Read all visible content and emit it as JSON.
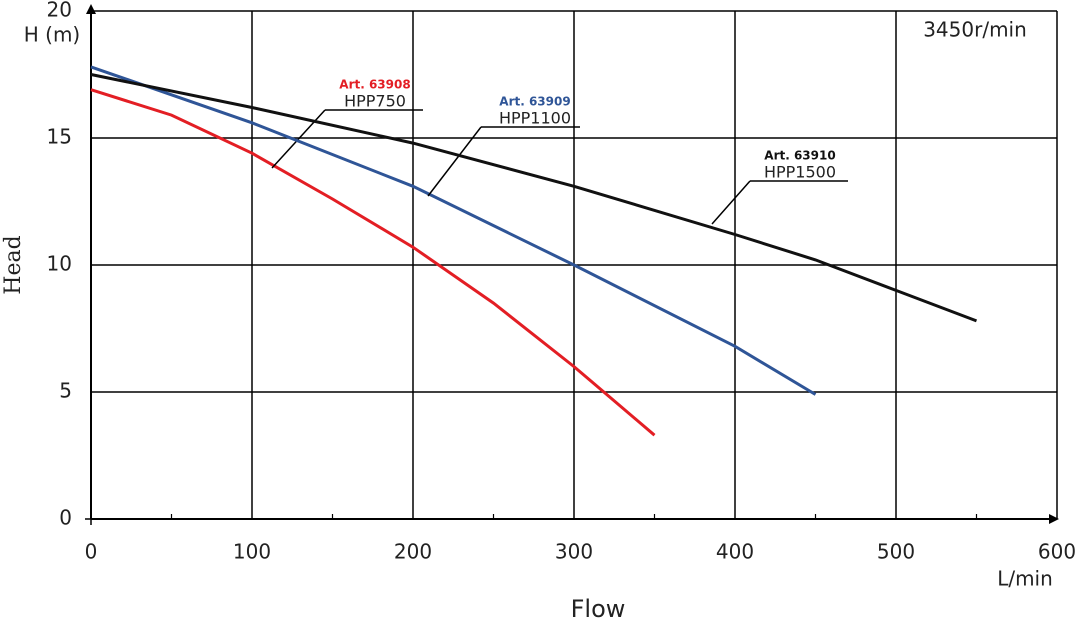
{
  "chart_data": {
    "type": "line",
    "y_label": "H (m)",
    "y_title": "Head",
    "x_title": "Flow",
    "x_label": "L/min",
    "annotation": "3450r/min",
    "xlim": [
      0,
      600
    ],
    "xticks": [
      0,
      100,
      200,
      300,
      400,
      500,
      600
    ],
    "ylim": [
      0,
      20
    ],
    "yticks": [
      0,
      5,
      10,
      15,
      20
    ],
    "grid": true,
    "series": [
      {
        "name": "HPP750",
        "article": "Art. 63908",
        "color": "#e31e24",
        "x": [
          0,
          50,
          100,
          150,
          200,
          250,
          300,
          350
        ],
        "values": [
          16.9,
          15.9,
          14.4,
          12.6,
          10.7,
          8.5,
          6.0,
          3.3
        ]
      },
      {
        "name": "HPP1100",
        "article": "Art. 63909",
        "color": "#2f5597",
        "x": [
          0,
          100,
          200,
          300,
          400,
          450
        ],
        "values": [
          17.8,
          15.6,
          13.1,
          10.0,
          6.8,
          4.9
        ]
      },
      {
        "name": "HPP1500",
        "article": "Art. 63910",
        "color": "#111111",
        "x": [
          0,
          100,
          200,
          300,
          400,
          450,
          500,
          550
        ],
        "values": [
          17.5,
          16.2,
          14.8,
          13.1,
          11.2,
          10.2,
          9.0,
          7.8
        ]
      }
    ]
  }
}
